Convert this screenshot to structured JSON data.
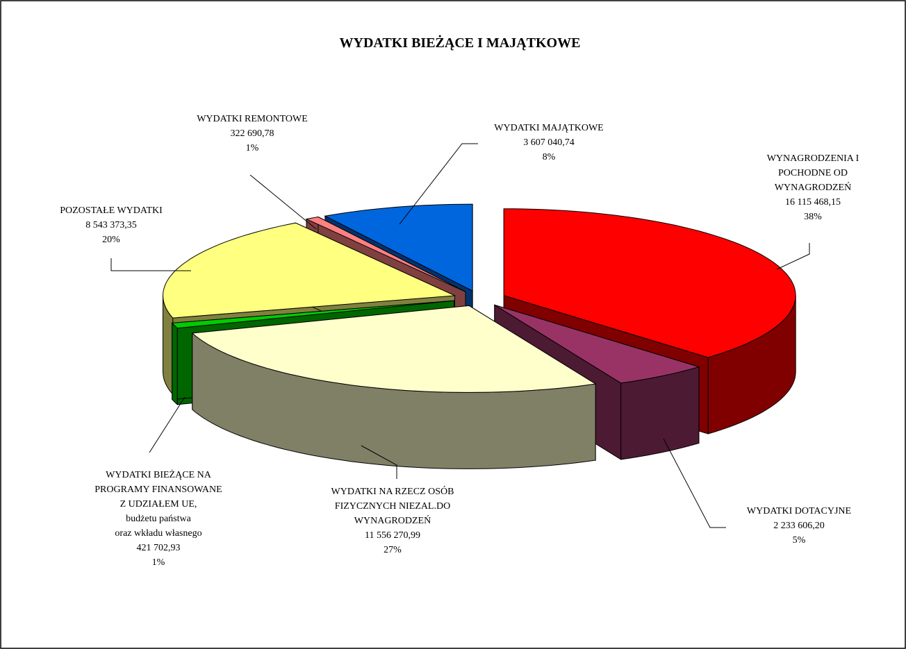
{
  "chart_data": {
    "type": "pie3d",
    "title": "WYDATKI BIEŻĄCE I MAJĄTKOWE",
    "labels": [
      [
        "WYNAGRODZENIA I",
        "POCHODNE OD",
        "WYNAGRODZEŃ"
      ],
      [
        "WYDATKI DOTACYJNE"
      ],
      [
        "WYDATKI NA RZECZ OSÓB",
        "FIZYCZNYCH NIEZAL.DO",
        "WYNAGRODZEŃ"
      ],
      [
        "WYDATKI BIEŻĄCE NA",
        "PROGRAMY FINANSOWANE",
        "Z UDZIAŁEM UE,",
        "budżetu państwa",
        "oraz wkładu własnego"
      ],
      [
        "POZOSTAŁE WYDATKI"
      ],
      [
        "WYDATKI REMONTOWE"
      ],
      [
        "WYDATKI MAJĄTKOWE"
      ]
    ],
    "values": [
      16115468.15,
      2233606.2,
      11556270.99,
      421702.93,
      8543373.35,
      322690.78,
      3607040.74
    ],
    "value_labels": [
      "16 115 468,15",
      "2 233 606,20",
      "11 556 270,99",
      "421 702,93",
      "8 543 373,35",
      "322 690,78",
      "3 607 040,74"
    ],
    "percent_labels": [
      "38%",
      "5%",
      "27%",
      "1%",
      "20%",
      "1%",
      "8%"
    ],
    "colors": [
      "#ff0000",
      "#993366",
      "#ffffcc",
      "#00cc00",
      "#ffff80",
      "#ff8080",
      "#0066dd"
    ]
  }
}
